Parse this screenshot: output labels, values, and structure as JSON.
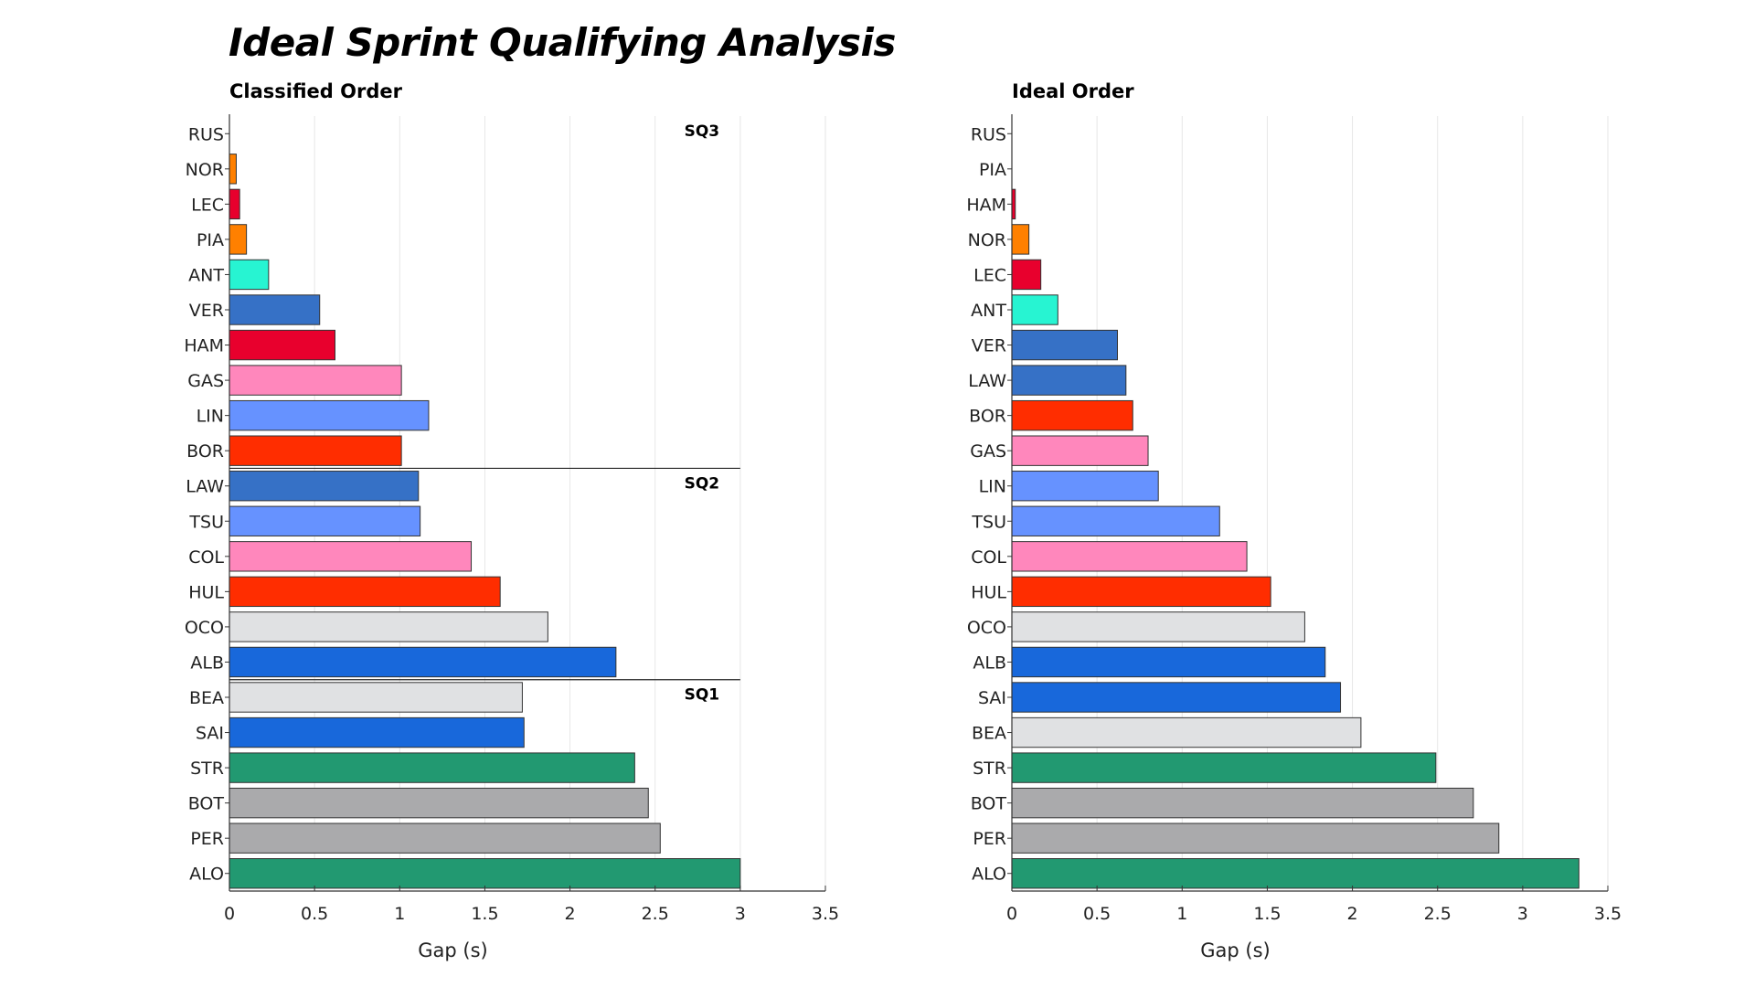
{
  "title": "Ideal Sprint Qualifying Analysis",
  "chart_data": [
    {
      "type": "bar",
      "orientation": "horizontal",
      "title": "Classified Order",
      "xlabel": "Gap (s)",
      "ylabel": "",
      "xlim": [
        0,
        3.5
      ],
      "xticks": [
        "0",
        "0.5",
        "1",
        "1.5",
        "2",
        "2.5",
        "3",
        "3.5"
      ],
      "grid": "vertical",
      "categories": [
        "RUS",
        "NOR",
        "LEC",
        "PIA",
        "ANT",
        "VER",
        "HAM",
        "GAS",
        "LIN",
        "BOR",
        "LAW",
        "TSU",
        "COL",
        "HUL",
        "OCO",
        "ALB",
        "BEA",
        "SAI",
        "STR",
        "BOT",
        "PER",
        "ALO"
      ],
      "values": [
        0,
        0.04,
        0.06,
        0.1,
        0.23,
        0.53,
        0.62,
        1.01,
        1.17,
        1.01,
        1.11,
        1.12,
        1.42,
        1.59,
        1.87,
        2.27,
        1.72,
        1.73,
        2.38,
        2.46,
        2.53,
        3.0
      ],
      "colors": [
        "#00d2be",
        "#ff8000",
        "#e8002d",
        "#ff8000",
        "#27f4d2",
        "#3671c6",
        "#e8002d",
        "#ff87bc",
        "#6692ff",
        "#ff2d00",
        "#3671c6",
        "#6692ff",
        "#ff87bc",
        "#ff2d00",
        "#e0e1e3",
        "#1868db",
        "#e0e1e3",
        "#1868db",
        "#229971",
        "#aaaaac",
        "#aaaaac",
        "#229971"
      ],
      "segments": [
        {
          "label": "SQ3",
          "start": 0
        },
        {
          "label": "SQ2",
          "start": 10
        },
        {
          "label": "SQ1",
          "start": 16
        }
      ]
    },
    {
      "type": "bar",
      "orientation": "horizontal",
      "title": "Ideal Order",
      "xlabel": "Gap (s)",
      "ylabel": "",
      "xlim": [
        0,
        3.5
      ],
      "xticks": [
        "0",
        "0.5",
        "1",
        "1.5",
        "2",
        "2.5",
        "3",
        "3.5"
      ],
      "grid": "vertical",
      "categories": [
        "RUS",
        "PIA",
        "HAM",
        "NOR",
        "LEC",
        "ANT",
        "VER",
        "LAW",
        "BOR",
        "GAS",
        "LIN",
        "TSU",
        "COL",
        "HUL",
        "OCO",
        "ALB",
        "SAI",
        "BEA",
        "STR",
        "BOT",
        "PER",
        "ALO"
      ],
      "values": [
        0,
        0,
        0.02,
        0.1,
        0.17,
        0.27,
        0.62,
        0.67,
        0.71,
        0.8,
        0.86,
        1.22,
        1.38,
        1.52,
        1.72,
        1.84,
        1.93,
        2.05,
        2.49,
        2.71,
        2.86,
        3.33
      ],
      "colors": [
        "#00d2be",
        "#ff8000",
        "#e8002d",
        "#ff8000",
        "#e8002d",
        "#27f4d2",
        "#3671c6",
        "#3671c6",
        "#ff2d00",
        "#ff87bc",
        "#6692ff",
        "#6692ff",
        "#ff87bc",
        "#ff2d00",
        "#e0e1e3",
        "#1868db",
        "#1868db",
        "#e0e1e3",
        "#229971",
        "#aaaaac",
        "#aaaaac",
        "#229971"
      ],
      "segments": []
    }
  ]
}
